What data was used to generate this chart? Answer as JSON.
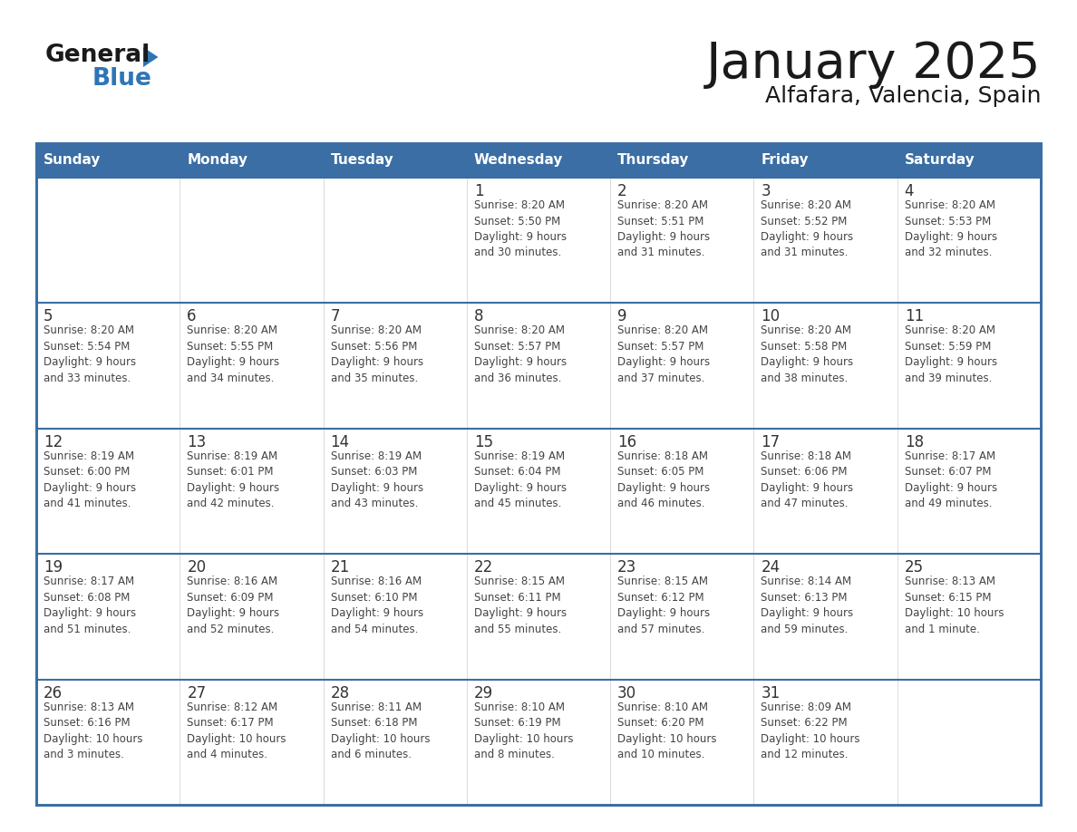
{
  "title": "January 2025",
  "subtitle": "Alfafara, Valencia, Spain",
  "days_of_week": [
    "Sunday",
    "Monday",
    "Tuesday",
    "Wednesday",
    "Thursday",
    "Friday",
    "Saturday"
  ],
  "header_bg": "#3a6ea5",
  "header_text_color": "#ffffff",
  "cell_bg": "#ffffff",
  "row_divider_color": "#3a6ea5",
  "outer_border_color": "#3a6ea5",
  "day_num_color": "#333333",
  "cell_text_color": "#444444",
  "title_color": "#1a1a1a",
  "subtitle_color": "#1a1a1a",
  "general_text_color": "#1a1a1a",
  "blue_color": "#2e75b6",
  "triangle_color": "#2e75b6",
  "weeks": [
    [
      {
        "day": null,
        "info": null
      },
      {
        "day": null,
        "info": null
      },
      {
        "day": null,
        "info": null
      },
      {
        "day": 1,
        "info": "Sunrise: 8:20 AM\nSunset: 5:50 PM\nDaylight: 9 hours\nand 30 minutes."
      },
      {
        "day": 2,
        "info": "Sunrise: 8:20 AM\nSunset: 5:51 PM\nDaylight: 9 hours\nand 31 minutes."
      },
      {
        "day": 3,
        "info": "Sunrise: 8:20 AM\nSunset: 5:52 PM\nDaylight: 9 hours\nand 31 minutes."
      },
      {
        "day": 4,
        "info": "Sunrise: 8:20 AM\nSunset: 5:53 PM\nDaylight: 9 hours\nand 32 minutes."
      }
    ],
    [
      {
        "day": 5,
        "info": "Sunrise: 8:20 AM\nSunset: 5:54 PM\nDaylight: 9 hours\nand 33 minutes."
      },
      {
        "day": 6,
        "info": "Sunrise: 8:20 AM\nSunset: 5:55 PM\nDaylight: 9 hours\nand 34 minutes."
      },
      {
        "day": 7,
        "info": "Sunrise: 8:20 AM\nSunset: 5:56 PM\nDaylight: 9 hours\nand 35 minutes."
      },
      {
        "day": 8,
        "info": "Sunrise: 8:20 AM\nSunset: 5:57 PM\nDaylight: 9 hours\nand 36 minutes."
      },
      {
        "day": 9,
        "info": "Sunrise: 8:20 AM\nSunset: 5:57 PM\nDaylight: 9 hours\nand 37 minutes."
      },
      {
        "day": 10,
        "info": "Sunrise: 8:20 AM\nSunset: 5:58 PM\nDaylight: 9 hours\nand 38 minutes."
      },
      {
        "day": 11,
        "info": "Sunrise: 8:20 AM\nSunset: 5:59 PM\nDaylight: 9 hours\nand 39 minutes."
      }
    ],
    [
      {
        "day": 12,
        "info": "Sunrise: 8:19 AM\nSunset: 6:00 PM\nDaylight: 9 hours\nand 41 minutes."
      },
      {
        "day": 13,
        "info": "Sunrise: 8:19 AM\nSunset: 6:01 PM\nDaylight: 9 hours\nand 42 minutes."
      },
      {
        "day": 14,
        "info": "Sunrise: 8:19 AM\nSunset: 6:03 PM\nDaylight: 9 hours\nand 43 minutes."
      },
      {
        "day": 15,
        "info": "Sunrise: 8:19 AM\nSunset: 6:04 PM\nDaylight: 9 hours\nand 45 minutes."
      },
      {
        "day": 16,
        "info": "Sunrise: 8:18 AM\nSunset: 6:05 PM\nDaylight: 9 hours\nand 46 minutes."
      },
      {
        "day": 17,
        "info": "Sunrise: 8:18 AM\nSunset: 6:06 PM\nDaylight: 9 hours\nand 47 minutes."
      },
      {
        "day": 18,
        "info": "Sunrise: 8:17 AM\nSunset: 6:07 PM\nDaylight: 9 hours\nand 49 minutes."
      }
    ],
    [
      {
        "day": 19,
        "info": "Sunrise: 8:17 AM\nSunset: 6:08 PM\nDaylight: 9 hours\nand 51 minutes."
      },
      {
        "day": 20,
        "info": "Sunrise: 8:16 AM\nSunset: 6:09 PM\nDaylight: 9 hours\nand 52 minutes."
      },
      {
        "day": 21,
        "info": "Sunrise: 8:16 AM\nSunset: 6:10 PM\nDaylight: 9 hours\nand 54 minutes."
      },
      {
        "day": 22,
        "info": "Sunrise: 8:15 AM\nSunset: 6:11 PM\nDaylight: 9 hours\nand 55 minutes."
      },
      {
        "day": 23,
        "info": "Sunrise: 8:15 AM\nSunset: 6:12 PM\nDaylight: 9 hours\nand 57 minutes."
      },
      {
        "day": 24,
        "info": "Sunrise: 8:14 AM\nSunset: 6:13 PM\nDaylight: 9 hours\nand 59 minutes."
      },
      {
        "day": 25,
        "info": "Sunrise: 8:13 AM\nSunset: 6:15 PM\nDaylight: 10 hours\nand 1 minute."
      }
    ],
    [
      {
        "day": 26,
        "info": "Sunrise: 8:13 AM\nSunset: 6:16 PM\nDaylight: 10 hours\nand 3 minutes."
      },
      {
        "day": 27,
        "info": "Sunrise: 8:12 AM\nSunset: 6:17 PM\nDaylight: 10 hours\nand 4 minutes."
      },
      {
        "day": 28,
        "info": "Sunrise: 8:11 AM\nSunset: 6:18 PM\nDaylight: 10 hours\nand 6 minutes."
      },
      {
        "day": 29,
        "info": "Sunrise: 8:10 AM\nSunset: 6:19 PM\nDaylight: 10 hours\nand 8 minutes."
      },
      {
        "day": 30,
        "info": "Sunrise: 8:10 AM\nSunset: 6:20 PM\nDaylight: 10 hours\nand 10 minutes."
      },
      {
        "day": 31,
        "info": "Sunrise: 8:09 AM\nSunset: 6:22 PM\nDaylight: 10 hours\nand 12 minutes."
      },
      {
        "day": null,
        "info": null
      }
    ]
  ]
}
